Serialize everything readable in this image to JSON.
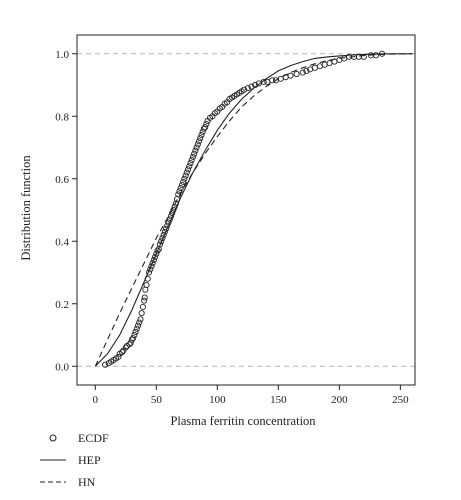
{
  "chart_data": {
    "type": "line",
    "xlabel": "Plasma ferritin concentration",
    "ylabel": "Distribution function",
    "xlim": [
      -15,
      262
    ],
    "ylim": [
      -0.06,
      1.06
    ],
    "xticks": [
      0,
      50,
      100,
      150,
      200,
      250
    ],
    "xtick_labels": [
      "0",
      "50",
      "100",
      "150",
      "200",
      "250"
    ],
    "yticks": [
      0.0,
      0.2,
      0.4,
      0.6,
      0.8,
      1.0
    ],
    "ytick_labels": [
      "0.0",
      "0.2",
      "0.4",
      "0.6",
      "0.8",
      "1.0"
    ],
    "reference_lines": [
      0,
      1
    ],
    "legend_position": "bottom-left",
    "series": [
      {
        "name": "ECDF",
        "style": "circles",
        "points": [
          [
            8,
            0.005
          ],
          [
            11,
            0.01
          ],
          [
            13,
            0.015
          ],
          [
            15,
            0.02
          ],
          [
            17,
            0.025
          ],
          [
            19,
            0.03
          ],
          [
            20,
            0.04
          ],
          [
            22,
            0.045
          ],
          [
            23,
            0.05
          ],
          [
            25,
            0.06
          ],
          [
            26,
            0.065
          ],
          [
            28,
            0.07
          ],
          [
            29,
            0.075
          ],
          [
            30,
            0.085
          ],
          [
            31,
            0.09
          ],
          [
            32,
            0.1
          ],
          [
            33,
            0.11
          ],
          [
            34,
            0.12
          ],
          [
            35,
            0.13
          ],
          [
            36,
            0.14
          ],
          [
            37,
            0.15
          ],
          [
            38,
            0.17
          ],
          [
            39,
            0.19
          ],
          [
            40,
            0.21
          ],
          [
            40.5,
            0.22
          ],
          [
            41,
            0.245
          ],
          [
            42,
            0.26
          ],
          [
            43,
            0.28
          ],
          [
            44,
            0.3
          ],
          [
            45,
            0.31
          ],
          [
            46,
            0.32
          ],
          [
            47,
            0.33
          ],
          [
            48,
            0.34
          ],
          [
            49,
            0.35
          ],
          [
            50,
            0.36
          ],
          [
            51,
            0.37
          ],
          [
            52,
            0.375
          ],
          [
            53,
            0.39
          ],
          [
            54,
            0.4
          ],
          [
            55,
            0.41
          ],
          [
            56,
            0.42
          ],
          [
            57,
            0.43
          ],
          [
            58,
            0.44
          ],
          [
            59,
            0.45
          ],
          [
            60,
            0.46
          ],
          [
            61,
            0.47
          ],
          [
            62,
            0.48
          ],
          [
            63,
            0.49
          ],
          [
            64,
            0.5
          ],
          [
            65,
            0.51
          ],
          [
            66,
            0.52
          ],
          [
            67,
            0.535
          ],
          [
            68,
            0.55
          ],
          [
            69,
            0.56
          ],
          [
            70,
            0.57
          ],
          [
            71,
            0.58
          ],
          [
            72,
            0.59
          ],
          [
            73,
            0.6
          ],
          [
            74,
            0.61
          ],
          [
            75,
            0.62
          ],
          [
            76,
            0.63
          ],
          [
            77,
            0.64
          ],
          [
            78,
            0.65
          ],
          [
            79,
            0.66
          ],
          [
            80,
            0.67
          ],
          [
            81,
            0.68
          ],
          [
            82,
            0.69
          ],
          [
            83,
            0.7
          ],
          [
            84,
            0.71
          ],
          [
            85,
            0.72
          ],
          [
            86,
            0.73
          ],
          [
            87,
            0.74
          ],
          [
            88,
            0.75
          ],
          [
            89,
            0.76
          ],
          [
            90,
            0.765
          ],
          [
            91,
            0.775
          ],
          [
            92,
            0.785
          ],
          [
            94,
            0.795
          ],
          [
            96,
            0.8
          ],
          [
            98,
            0.81
          ],
          [
            100,
            0.815
          ],
          [
            102,
            0.825
          ],
          [
            104,
            0.83
          ],
          [
            106,
            0.84
          ],
          [
            108,
            0.845
          ],
          [
            110,
            0.855
          ],
          [
            112,
            0.86
          ],
          [
            114,
            0.865
          ],
          [
            116,
            0.87
          ],
          [
            118,
            0.875
          ],
          [
            120,
            0.88
          ],
          [
            122,
            0.885
          ],
          [
            125,
            0.89
          ],
          [
            128,
            0.895
          ],
          [
            131,
            0.9
          ],
          [
            134,
            0.905
          ],
          [
            138,
            0.91
          ],
          [
            141,
            0.91
          ],
          [
            145,
            0.915
          ],
          [
            148,
            0.915
          ],
          [
            152,
            0.92
          ],
          [
            156,
            0.925
          ],
          [
            160,
            0.93
          ],
          [
            165,
            0.935
          ],
          [
            170,
            0.94
          ],
          [
            173,
            0.945
          ],
          [
            176,
            0.95
          ],
          [
            180,
            0.955
          ],
          [
            184,
            0.96
          ],
          [
            188,
            0.965
          ],
          [
            192,
            0.97
          ],
          [
            196,
            0.975
          ],
          [
            200,
            0.98
          ],
          [
            204,
            0.985
          ],
          [
            208,
            0.99
          ],
          [
            212,
            0.99
          ],
          [
            216,
            0.99
          ],
          [
            220,
            0.99
          ],
          [
            226,
            0.995
          ],
          [
            230,
            0.995
          ],
          [
            235,
            1.0
          ]
        ]
      },
      {
        "name": "HEP",
        "style": "solid",
        "points": [
          [
            0,
            0
          ],
          [
            10,
            0.04
          ],
          [
            20,
            0.1
          ],
          [
            30,
            0.18
          ],
          [
            40,
            0.27
          ],
          [
            50,
            0.36
          ],
          [
            60,
            0.45
          ],
          [
            70,
            0.54
          ],
          [
            80,
            0.62
          ],
          [
            90,
            0.69
          ],
          [
            100,
            0.755
          ],
          [
            110,
            0.81
          ],
          [
            120,
            0.855
          ],
          [
            130,
            0.89
          ],
          [
            140,
            0.92
          ],
          [
            150,
            0.945
          ],
          [
            160,
            0.962
          ],
          [
            170,
            0.975
          ],
          [
            180,
            0.985
          ],
          [
            190,
            0.99
          ],
          [
            200,
            0.993
          ],
          [
            210,
            0.996
          ],
          [
            220,
            0.998
          ],
          [
            230,
            0.999
          ],
          [
            240,
            1.0
          ],
          [
            260,
            1.0
          ]
        ]
      },
      {
        "name": "HN",
        "style": "dashed",
        "points": [
          [
            0,
            0
          ],
          [
            10,
            0.085
          ],
          [
            20,
            0.17
          ],
          [
            30,
            0.25
          ],
          [
            40,
            0.33
          ],
          [
            50,
            0.41
          ],
          [
            60,
            0.48
          ],
          [
            70,
            0.555
          ],
          [
            80,
            0.62
          ],
          [
            90,
            0.68
          ],
          [
            100,
            0.735
          ],
          [
            110,
            0.785
          ],
          [
            120,
            0.83
          ],
          [
            130,
            0.865
          ],
          [
            140,
            0.895
          ],
          [
            150,
            0.92
          ],
          [
            160,
            0.94
          ],
          [
            170,
            0.955
          ],
          [
            180,
            0.968
          ],
          [
            190,
            0.978
          ],
          [
            200,
            0.985
          ],
          [
            210,
            0.99
          ],
          [
            220,
            0.994
          ],
          [
            230,
            0.997
          ],
          [
            240,
            0.999
          ],
          [
            260,
            1.0
          ]
        ]
      }
    ]
  }
}
